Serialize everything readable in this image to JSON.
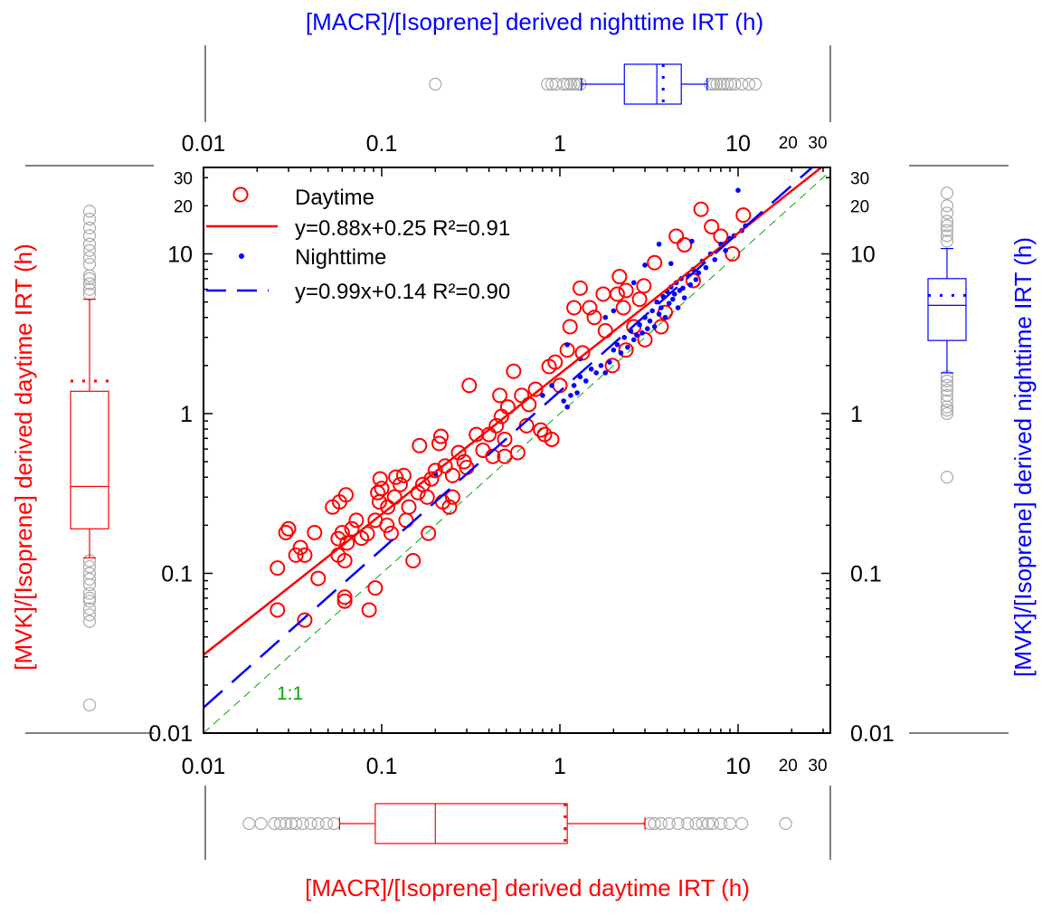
{
  "chart_data": {
    "type": "scatter",
    "xscale": "log",
    "yscale": "log",
    "xlim": [
      0.01,
      34
    ],
    "ylim": [
      0.01,
      34
    ],
    "x_ticks": [
      {
        "v": 0.01,
        "label": "0.01"
      },
      {
        "v": 0.1,
        "label": "0.1"
      },
      {
        "v": 1,
        "label": "1"
      },
      {
        "v": 10,
        "label": "10"
      },
      {
        "v": 20,
        "label": "20"
      },
      {
        "v": 30,
        "label": "30"
      }
    ],
    "y_ticks": [
      {
        "v": 0.01,
        "label": "0.01"
      },
      {
        "v": 0.1,
        "label": "0.1"
      },
      {
        "v": 1,
        "label": "1"
      },
      {
        "v": 10,
        "label": "10"
      },
      {
        "v": 20,
        "label": "20"
      },
      {
        "v": 30,
        "label": "30"
      }
    ],
    "titles": {
      "bottom": "[MACR]/[Isoprene] derived daytime IRT (h)",
      "top": "[MACR]/[Isoprene] derived nighttime IRT (h)",
      "left": "[MVK]/[Isoprene] derived  daytime IRT (h)",
      "right": "[MVK]/[Isoprene] derived  nighttime IRT (h)"
    },
    "colors": {
      "day": "#ff0000",
      "night": "#0000ff",
      "one_to_one": "#00aa00",
      "outlier": "#aaaaaa"
    },
    "one_to_one_label": "1:1",
    "series": [
      {
        "name": "Daytime",
        "marker": "open-circle",
        "points": [
          [
            0.026,
            0.059
          ],
          [
            0.026,
            0.108
          ],
          [
            0.03,
            0.19
          ],
          [
            0.029,
            0.18
          ],
          [
            0.033,
            0.13
          ],
          [
            0.035,
            0.145
          ],
          [
            0.037,
            0.13
          ],
          [
            0.042,
            0.18
          ],
          [
            0.044,
            0.093
          ],
          [
            0.037,
            0.051
          ],
          [
            0.053,
            0.26
          ],
          [
            0.058,
            0.28
          ],
          [
            0.057,
            0.165
          ],
          [
            0.06,
            0.18
          ],
          [
            0.057,
            0.13
          ],
          [
            0.062,
            0.12
          ],
          [
            0.063,
            0.31
          ],
          [
            0.062,
            0.071
          ],
          [
            0.062,
            0.067
          ],
          [
            0.064,
            0.155
          ],
          [
            0.068,
            0.19
          ],
          [
            0.072,
            0.215
          ],
          [
            0.077,
            0.166
          ],
          [
            0.083,
            0.177
          ],
          [
            0.085,
            0.059
          ],
          [
            0.092,
            0.081
          ],
          [
            0.092,
            0.215
          ],
          [
            0.095,
            0.32
          ],
          [
            0.097,
            0.28
          ],
          [
            0.098,
            0.39
          ],
          [
            0.1,
            0.34
          ],
          [
            0.107,
            0.2
          ],
          [
            0.108,
            0.26
          ],
          [
            0.113,
            0.178
          ],
          [
            0.118,
            0.3
          ],
          [
            0.12,
            0.4
          ],
          [
            0.127,
            0.36
          ],
          [
            0.133,
            0.41
          ],
          [
            0.137,
            0.215
          ],
          [
            0.142,
            0.26
          ],
          [
            0.15,
            0.12
          ],
          [
            0.16,
            0.32
          ],
          [
            0.163,
            0.63
          ],
          [
            0.17,
            0.36
          ],
          [
            0.18,
            0.3
          ],
          [
            0.183,
            0.178
          ],
          [
            0.19,
            0.39
          ],
          [
            0.2,
            0.44
          ],
          [
            0.21,
            0.65
          ],
          [
            0.215,
            0.72
          ],
          [
            0.22,
            0.28
          ],
          [
            0.227,
            0.47
          ],
          [
            0.25,
            0.41
          ],
          [
            0.24,
            0.26
          ],
          [
            0.25,
            0.3
          ],
          [
            0.27,
            0.57
          ],
          [
            0.29,
            0.5
          ],
          [
            0.3,
            0.46
          ],
          [
            0.31,
            1.5
          ],
          [
            0.34,
            0.74
          ],
          [
            0.37,
            0.59
          ],
          [
            0.4,
            0.74
          ],
          [
            0.42,
            0.54
          ],
          [
            0.44,
            0.84
          ],
          [
            0.46,
            1.3
          ],
          [
            0.47,
            0.96
          ],
          [
            0.49,
            0.69
          ],
          [
            0.49,
            0.54
          ],
          [
            0.51,
            1.1
          ],
          [
            0.55,
            1.84
          ],
          [
            0.58,
            0.57
          ],
          [
            0.61,
            1.3
          ],
          [
            0.65,
            0.84
          ],
          [
            0.67,
            1.14
          ],
          [
            0.73,
            1.42
          ],
          [
            0.78,
            0.79
          ],
          [
            0.82,
            0.74
          ],
          [
            0.87,
            1.97
          ],
          [
            0.9,
            0.69
          ],
          [
            0.94,
            2.1
          ],
          [
            1.0,
            1.5
          ],
          [
            1.1,
            2.5
          ],
          [
            1.14,
            3.5
          ],
          [
            1.2,
            4.6
          ],
          [
            1.3,
            6.1
          ],
          [
            1.34,
            2.4
          ],
          [
            1.47,
            4.6
          ],
          [
            1.56,
            4.0
          ],
          [
            1.75,
            5.6
          ],
          [
            1.8,
            3.3
          ],
          [
            1.97,
            2.0
          ],
          [
            2.1,
            5.6
          ],
          [
            2.16,
            7.2
          ],
          [
            2.27,
            4.6
          ],
          [
            2.35,
            5.9
          ],
          [
            2.35,
            2.5
          ],
          [
            2.6,
            3.5
          ],
          [
            2.8,
            5.2
          ],
          [
            2.96,
            6.3
          ],
          [
            3.0,
            2.9
          ],
          [
            3.4,
            8.8
          ],
          [
            3.7,
            3.5
          ],
          [
            3.9,
            4.3
          ],
          [
            4.5,
            12.9
          ],
          [
            5.0,
            11.4
          ],
          [
            5.6,
            6.8
          ],
          [
            6.2,
            19
          ],
          [
            7.1,
            14.8
          ],
          [
            8.0,
            12.9
          ],
          [
            9.3,
            10
          ],
          [
            10.7,
            17.5
          ]
        ]
      },
      {
        "name": "Nighttime",
        "marker": "filled-dot",
        "points": [
          [
            0.2,
            0.42
          ],
          [
            0.8,
            1.3
          ],
          [
            0.9,
            1.5
          ],
          [
            1.05,
            1.2
          ],
          [
            1.1,
            1.1
          ],
          [
            1.1,
            2.7
          ],
          [
            1.15,
            1.3
          ],
          [
            1.2,
            1.5
          ],
          [
            1.25,
            1.35
          ],
          [
            1.3,
            1.7
          ],
          [
            1.3,
            2.2
          ],
          [
            1.4,
            1.6
          ],
          [
            1.5,
            1.9
          ],
          [
            1.6,
            1.8
          ],
          [
            1.7,
            2.0
          ],
          [
            1.8,
            1.8
          ],
          [
            1.8,
            4.0
          ],
          [
            1.9,
            2.1
          ],
          [
            2.0,
            2.5
          ],
          [
            2.0,
            4.4
          ],
          [
            2.1,
            2.7
          ],
          [
            2.2,
            2.4
          ],
          [
            2.3,
            3.0
          ],
          [
            2.4,
            2.6
          ],
          [
            2.5,
            3.3
          ],
          [
            2.6,
            2.9
          ],
          [
            2.6,
            6.6
          ],
          [
            2.7,
            3.1
          ],
          [
            2.8,
            3.6
          ],
          [
            2.9,
            3.2
          ],
          [
            3.0,
            4.0
          ],
          [
            3.0,
            8.5
          ],
          [
            3.1,
            3.4
          ],
          [
            3.2,
            3.8
          ],
          [
            3.3,
            4.4
          ],
          [
            3.4,
            3.5
          ],
          [
            3.5,
            5.0
          ],
          [
            3.6,
            4.2
          ],
          [
            3.6,
            11.5
          ],
          [
            3.7,
            4.6
          ],
          [
            3.8,
            5.4
          ],
          [
            3.9,
            4.0
          ],
          [
            4.0,
            5.8
          ],
          [
            4.1,
            4.9
          ],
          [
            4.2,
            6.2
          ],
          [
            4.2,
            8.7
          ],
          [
            4.3,
            5.2
          ],
          [
            4.4,
            5.6
          ],
          [
            4.5,
            6.6
          ],
          [
            4.6,
            4.6
          ],
          [
            4.7,
            5.9
          ],
          [
            4.8,
            7.0
          ],
          [
            4.9,
            6.1
          ],
          [
            5.0,
            5.3
          ],
          [
            5.2,
            7.4
          ],
          [
            5.4,
            6.4
          ],
          [
            5.5,
            12
          ],
          [
            5.6,
            8.0
          ],
          [
            5.8,
            6.9
          ],
          [
            6.0,
            7.6
          ],
          [
            6.3,
            9.0
          ],
          [
            6.6,
            8.2
          ],
          [
            7.0,
            10.0
          ],
          [
            7.4,
            9.2
          ],
          [
            8.0,
            11.5
          ],
          [
            8.5,
            10.5
          ],
          [
            9.0,
            12.5
          ],
          [
            9.5,
            13.0
          ],
          [
            10.0,
            25
          ],
          [
            10.5,
            14
          ],
          [
            11,
            15
          ]
        ]
      }
    ],
    "fits": [
      {
        "series": "Daytime",
        "label": "y=0.88x+0.25 R²=0.91",
        "slope": 0.88,
        "intercept": 0.25,
        "space": "log10",
        "style": "solid"
      },
      {
        "series": "Nighttime",
        "label": "y=0.99x+0.14 R²=0.90",
        "slope": 0.99,
        "intercept": 0.14,
        "space": "log10",
        "style": "dashed"
      }
    ],
    "legend": {
      "position": "top-left",
      "entries": [
        "Daytime",
        "y=0.88x+0.25 R²=0.91",
        "Nighttime",
        "y=0.99x+0.14 R²=0.90"
      ]
    },
    "boxplots": {
      "top": {
        "variable": "MACR nighttime IRT",
        "whisker_low": 1.32,
        "q1": 2.3,
        "median": 3.5,
        "mean": 3.8,
        "q3": 4.8,
        "whisker_high": 6.7,
        "outliers": [
          0.2,
          0.85,
          0.9,
          0.95,
          1.05,
          1.1,
          1.15,
          1.2,
          1.25,
          1.3,
          7.0,
          7.3,
          7.6,
          8.0,
          8.3,
          8.7,
          9.1,
          9.6,
          10.5,
          11.5,
          12.5
        ]
      },
      "bottom": {
        "variable": "MACR daytime IRT",
        "whisker_low": 0.058,
        "q1": 0.092,
        "median": 0.2,
        "mean": 1.07,
        "q3": 1.1,
        "whisker_high": 3.0,
        "outliers": [
          0.018,
          0.021,
          0.025,
          0.027,
          0.029,
          0.031,
          0.033,
          0.036,
          0.04,
          0.044,
          0.049,
          0.054,
          3.2,
          3.4,
          3.7,
          4.1,
          4.6,
          5.2,
          5.8,
          6.3,
          6.8,
          7.2,
          8.0,
          9.0,
          10.5,
          18.5
        ]
      },
      "left": {
        "variable": "MVK daytime IRT",
        "whisker_low": 0.125,
        "q1": 0.19,
        "median": 0.35,
        "mean": 1.6,
        "q3": 1.38,
        "whisker_high": 5.2,
        "outliers": [
          5.6,
          6.0,
          6.5,
          7.0,
          7.3,
          8.6,
          9.5,
          10.5,
          11.5,
          13,
          14.5,
          16.5,
          18.5,
          0.12,
          0.11,
          0.1,
          0.092,
          0.085,
          0.075,
          0.07,
          0.067,
          0.06,
          0.055,
          0.05,
          0.015
        ]
      },
      "right": {
        "variable": "MVK nighttime IRT",
        "whisker_low": 1.8,
        "q1": 2.87,
        "median": 4.76,
        "mean": 5.5,
        "q3": 7.0,
        "whisker_high": 10.8,
        "outliers": [
          12,
          13,
          14,
          15,
          16,
          18,
          20,
          24,
          1.7,
          1.6,
          1.5,
          1.4,
          1.3,
          1.2,
          1.1,
          1.05,
          1.0,
          0.4
        ]
      }
    }
  }
}
